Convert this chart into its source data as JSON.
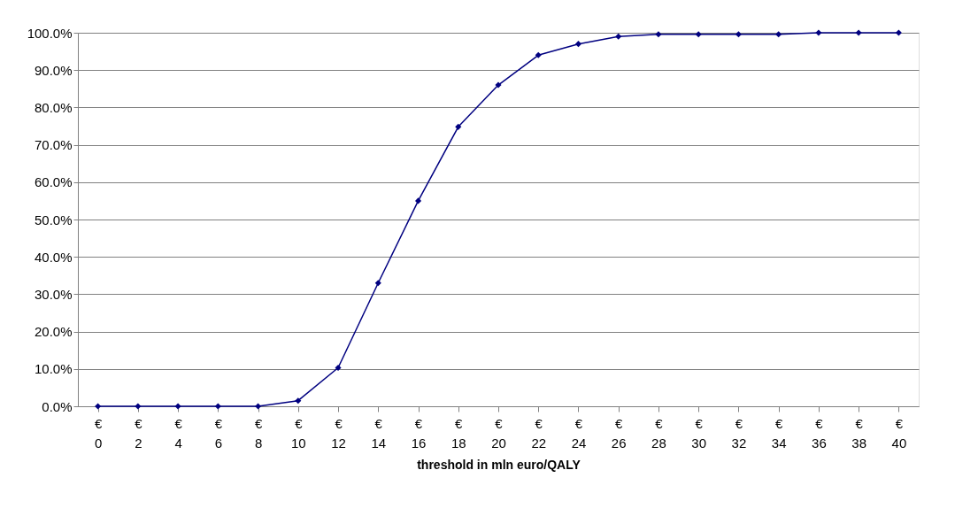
{
  "chart_data": {
    "type": "line",
    "xlabel": "threshold in mln euro/QALY",
    "categories": [
      "€ 0",
      "€ 2",
      "€ 4",
      "€ 6",
      "€ 8",
      "€ 10",
      "€ 12",
      "€ 14",
      "€ 16",
      "€ 18",
      "€ 20",
      "€ 22",
      "€ 24",
      "€ 26",
      "€ 28",
      "€ 30",
      "€ 32",
      "€ 34",
      "€ 36",
      "€ 38",
      "€ 40"
    ],
    "series": [
      {
        "color": "#000080",
        "values": [
          0,
          0,
          0,
          0,
          0,
          1.5,
          10.3,
          33,
          55,
          74.8,
          86,
          94,
          97,
          99,
          99.6,
          99.6,
          99.6,
          99.6,
          100,
          100,
          100
        ]
      }
    ],
    "ylim": [
      0,
      100
    ],
    "yticks": [
      {
        "value": 0,
        "label": "0.0%"
      },
      {
        "value": 10,
        "label": "10.0%"
      },
      {
        "value": 20,
        "label": "20.0%"
      },
      {
        "value": 30,
        "label": "30.0%"
      },
      {
        "value": 40,
        "label": "40.0%"
      },
      {
        "value": 50,
        "label": "50.0%"
      },
      {
        "value": 60,
        "label": "60.0%"
      },
      {
        "value": 70,
        "label": "70.0%"
      },
      {
        "value": 80,
        "label": "80.0%"
      },
      {
        "value": 90,
        "label": "90.0%"
      },
      {
        "value": 100,
        "label": "100.0%"
      }
    ],
    "grid": "y",
    "marker": "diamond",
    "line_style": "solid"
  }
}
